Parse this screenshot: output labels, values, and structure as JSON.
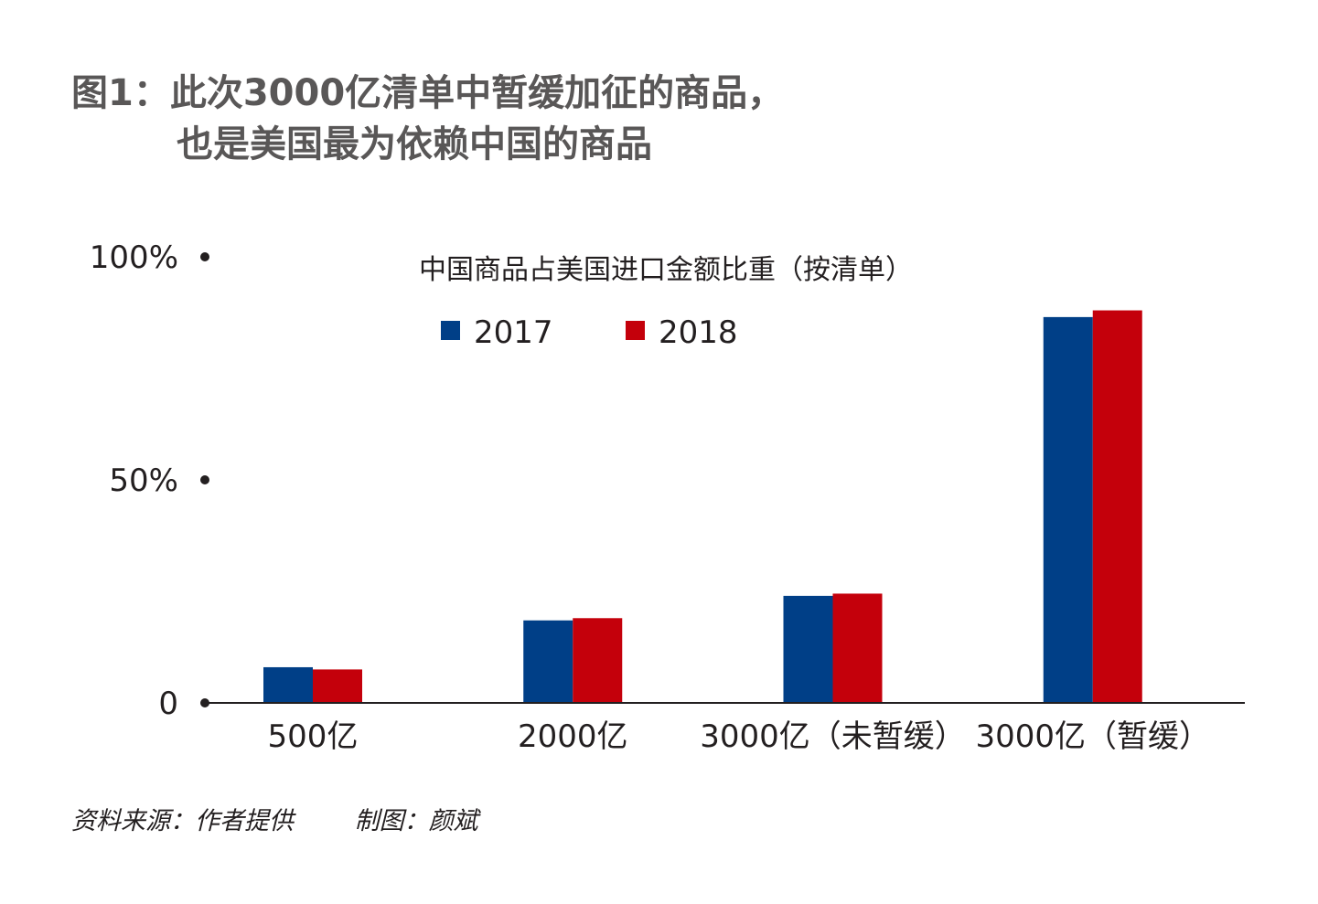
{
  "figure": {
    "title_line1": "图1：此次3000亿清单中暂缓加征的商品，",
    "title_line2": "也是美国最为依赖中国的商品"
  },
  "footer": {
    "source": "资料来源：作者提供",
    "credit": "制图：颜斌"
  },
  "chart_data": {
    "type": "bar",
    "title": "中国商品占美国进口金额比重（按清单）",
    "categories": [
      "500亿",
      "2000亿",
      "3000亿（未暂缓）",
      "3000亿（暂缓）"
    ],
    "series": [
      {
        "name": "2017",
        "color": "#003f87",
        "values": [
          8,
          18.5,
          24,
          86.5
        ]
      },
      {
        "name": "2018",
        "color": "#c4000b",
        "values": [
          7.5,
          19,
          24.5,
          88
        ]
      }
    ],
    "yticks": [
      {
        "value": 0,
        "label": "0"
      },
      {
        "value": 50,
        "label": "50%"
      },
      {
        "value": 100,
        "label": "100%"
      }
    ],
    "ylim": [
      0,
      100
    ],
    "grid": false,
    "legend_position": "top-center"
  }
}
